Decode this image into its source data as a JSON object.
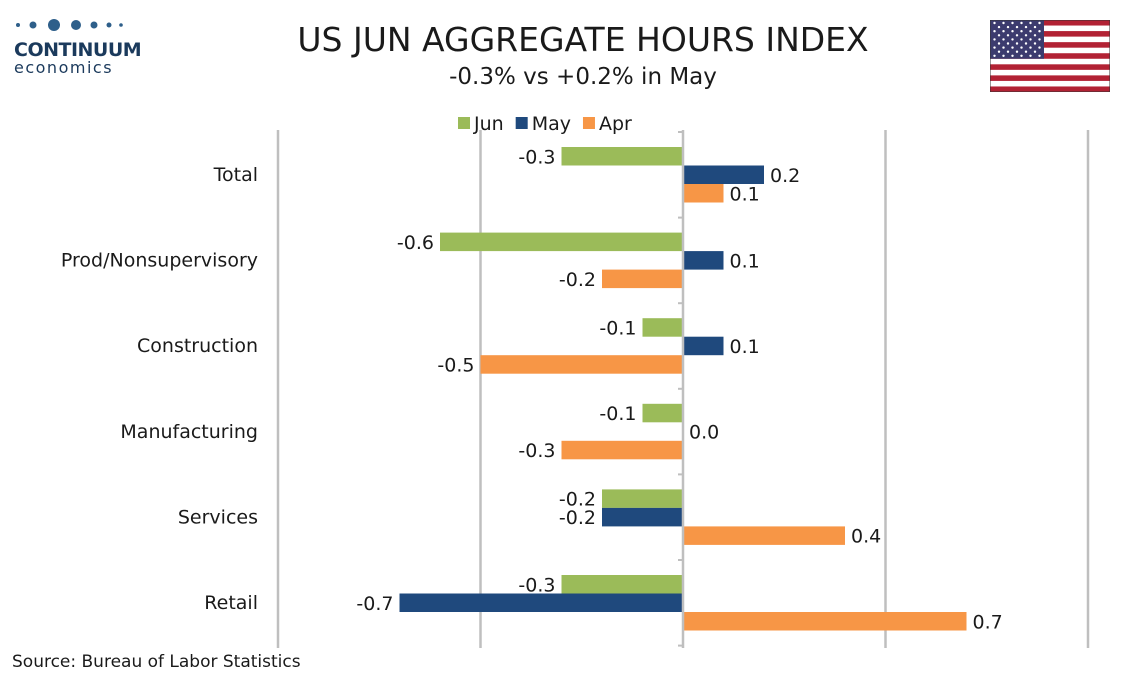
{
  "branding": {
    "name_line1": "CONTINUUM",
    "name_line2": "economics",
    "logo_color": "#2e5f8a"
  },
  "header": {
    "title": "US JUN AGGREGATE HOURS INDEX",
    "subtitle": "-0.3% vs +0.2% in May"
  },
  "footer": {
    "source": "Source: Bureau of Labor Statistics"
  },
  "chart_data": {
    "type": "bar",
    "orientation": "horizontal",
    "categories": [
      "Total",
      "Prod/Nonsupervisory",
      "Construction",
      "Manufacturing",
      "Services",
      "Retail"
    ],
    "series": [
      {
        "name": "Jun",
        "color": "#9bbb59",
        "values": [
          -0.3,
          -0.6,
          -0.1,
          -0.1,
          -0.2,
          -0.3
        ]
      },
      {
        "name": "May",
        "color": "#1f497d",
        "values": [
          0.2,
          0.1,
          0.1,
          0.0,
          -0.2,
          -0.7
        ]
      },
      {
        "name": "Apr",
        "color": "#f79646",
        "values": [
          0.1,
          -0.2,
          -0.5,
          -0.3,
          0.4,
          0.7
        ]
      }
    ],
    "value_labels": [
      [
        "-0.3",
        "0.2",
        "0.1"
      ],
      [
        "-0.6",
        "0.1",
        "-0.2"
      ],
      [
        "-0.1",
        "0.1",
        "-0.5"
      ],
      [
        "-0.1",
        "0.0",
        "-0.3"
      ],
      [
        "-0.2",
        "-0.2",
        "0.4"
      ],
      [
        "-0.3",
        "-0.7",
        "0.7"
      ]
    ],
    "xlim": [
      -1.0,
      1.0
    ],
    "gridlines": [
      -1.0,
      -0.5,
      0.5,
      1.0
    ],
    "grid": true,
    "legend_position": "top"
  }
}
